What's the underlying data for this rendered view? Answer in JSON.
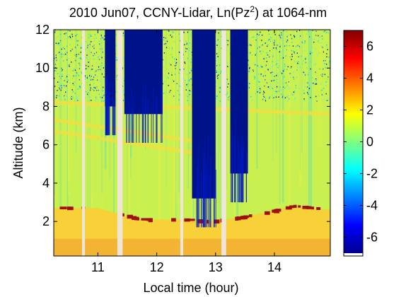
{
  "chart_data": {
    "type": "heatmap",
    "title": "2010 Jun07, CCNY-Lidar, Ln(Pz",
    "title_superscript": "2",
    "title_suffix": ") at 1064-nm",
    "xlabel": "Local time (hour)",
    "ylabel": "Altitude (km)",
    "xlim": [
      10.25,
      14.95
    ],
    "ylim": [
      0.2,
      12
    ],
    "xticks": [
      11,
      12,
      13,
      14
    ],
    "yticks": [
      2,
      4,
      6,
      8,
      10,
      12
    ],
    "colorbar": {
      "range": [
        -7,
        7
      ],
      "ticks": [
        6,
        4,
        2,
        0,
        -2,
        -4,
        -6
      ],
      "colormap": "jet"
    },
    "colors": {
      "background_level": "#c8f050",
      "boundary_layer": "#f8d038",
      "surface": "#f0a830",
      "aerosol_top": "#a01010",
      "low_signal": "#00128a",
      "data_gap": "#f0e6d8"
    },
    "gaps_hours": [
      [
        10.73,
        10.78
      ],
      [
        11.33,
        11.42
      ],
      [
        12.4,
        12.45
      ],
      [
        13.1,
        13.18
      ]
    ],
    "cloud_screened_blocks": [
      {
        "x": [
          11.12,
          11.3
        ],
        "y": [
          8.0,
          12
        ]
      },
      {
        "x": [
          11.45,
          12.1
        ],
        "y": [
          7.6,
          12
        ]
      },
      {
        "x": [
          12.6,
          13.0
        ],
        "y": [
          3.2,
          12
        ]
      },
      {
        "x": [
          13.25,
          13.55
        ],
        "y": [
          4.5,
          12
        ]
      }
    ],
    "boundary_layer_top_km": [
      [
        10.25,
        2.7
      ],
      [
        11.0,
        2.7
      ],
      [
        11.7,
        2.1
      ],
      [
        12.4,
        2.1
      ],
      [
        12.9,
        2.0
      ],
      [
        13.4,
        2.2
      ],
      [
        13.9,
        2.5
      ],
      [
        14.3,
        2.8
      ],
      [
        14.95,
        2.6
      ]
    ],
    "aerosol_layers_km": [
      {
        "x": [
          10.25,
          12.6
        ],
        "y_start": 7.3,
        "y_end": 6.2
      },
      {
        "x": [
          10.25,
          13.0
        ],
        "y_start": 6.7,
        "y_end": 5.4
      },
      {
        "x": [
          10.25,
          14.95
        ],
        "y_start": 8.2,
        "y_end": 7.6
      }
    ]
  }
}
